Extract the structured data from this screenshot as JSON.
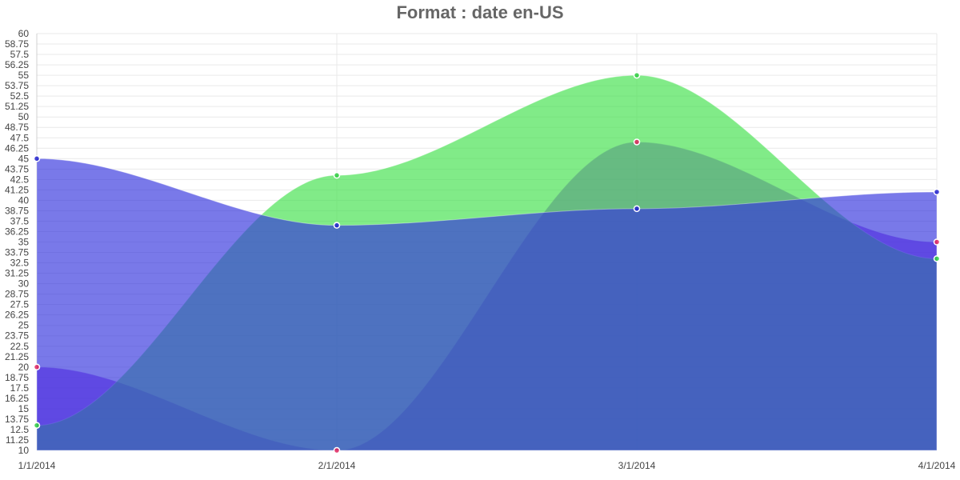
{
  "chart_data": {
    "type": "area",
    "title": "Format : date en-US",
    "xlabel": "",
    "ylabel": "",
    "x": [
      "1/1/2014",
      "2/1/2014",
      "3/1/2014",
      "4/1/2014"
    ],
    "ylim": [
      10,
      60
    ],
    "ystep": 1.25,
    "grid": true,
    "legend": "none",
    "series": [
      {
        "values": [
          20,
          10,
          47,
          35
        ],
        "color": "#e0245e",
        "fill": "#8a2be2"
      },
      {
        "values": [
          13,
          43,
          55,
          33
        ],
        "color": "#2ecc40",
        "fill": "#3fe04a"
      },
      {
        "values": [
          45,
          37,
          39,
          41
        ],
        "color": "#2222cc",
        "fill": "#3333dd"
      }
    ]
  }
}
